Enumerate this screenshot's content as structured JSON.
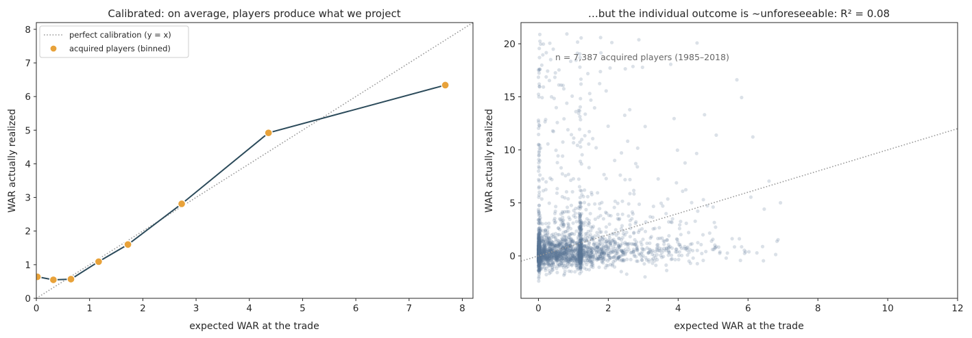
{
  "chart_data": [
    {
      "type": "line",
      "title": "Calibrated: on average, players produce what we project",
      "xlabel": "expected WAR at the trade",
      "ylabel": "WAR actually realized",
      "xlim": [
        0,
        8.2
      ],
      "ylim": [
        0,
        8.2
      ],
      "xticks": [
        0,
        1,
        2,
        3,
        4,
        5,
        6,
        7,
        8
      ],
      "yticks": [
        0,
        1,
        2,
        3,
        4,
        5,
        6,
        7,
        8
      ],
      "grid": false,
      "legend_position": "upper-left",
      "reference_line": {
        "name": "perfect calibration (y = x)",
        "slope": 1,
        "intercept": 0,
        "style": "dotted",
        "color": "#999999"
      },
      "series": [
        {
          "name": "acquired players (binned)",
          "line_color": "#2b4a5a",
          "marker_color": "#e8a23a",
          "x": [
            0.02,
            0.32,
            0.65,
            1.17,
            1.72,
            2.73,
            4.36,
            7.68
          ],
          "y": [
            0.64,
            0.55,
            0.57,
            1.09,
            1.6,
            2.81,
            4.92,
            6.34
          ]
        }
      ]
    },
    {
      "type": "scatter",
      "title": "…but the individual outcome is ~unforeseeable:  R² = 0.08",
      "xlabel": "expected WAR at the trade",
      "ylabel": "WAR actually realized",
      "xlim": [
        -0.5,
        12
      ],
      "ylim": [
        -4,
        22
      ],
      "xticks": [
        0,
        2,
        4,
        6,
        8,
        10,
        12
      ],
      "yticks": [
        0,
        5,
        10,
        15,
        20
      ],
      "grid": false,
      "point_color": "#5a7894",
      "annotation": "n = 7,387 acquired players (1985–2018)",
      "reference_line": {
        "slope": 1,
        "intercept": 0,
        "style": "dotted",
        "color": "#999999"
      },
      "n_points": 7387,
      "r_squared": 0.08
    }
  ]
}
